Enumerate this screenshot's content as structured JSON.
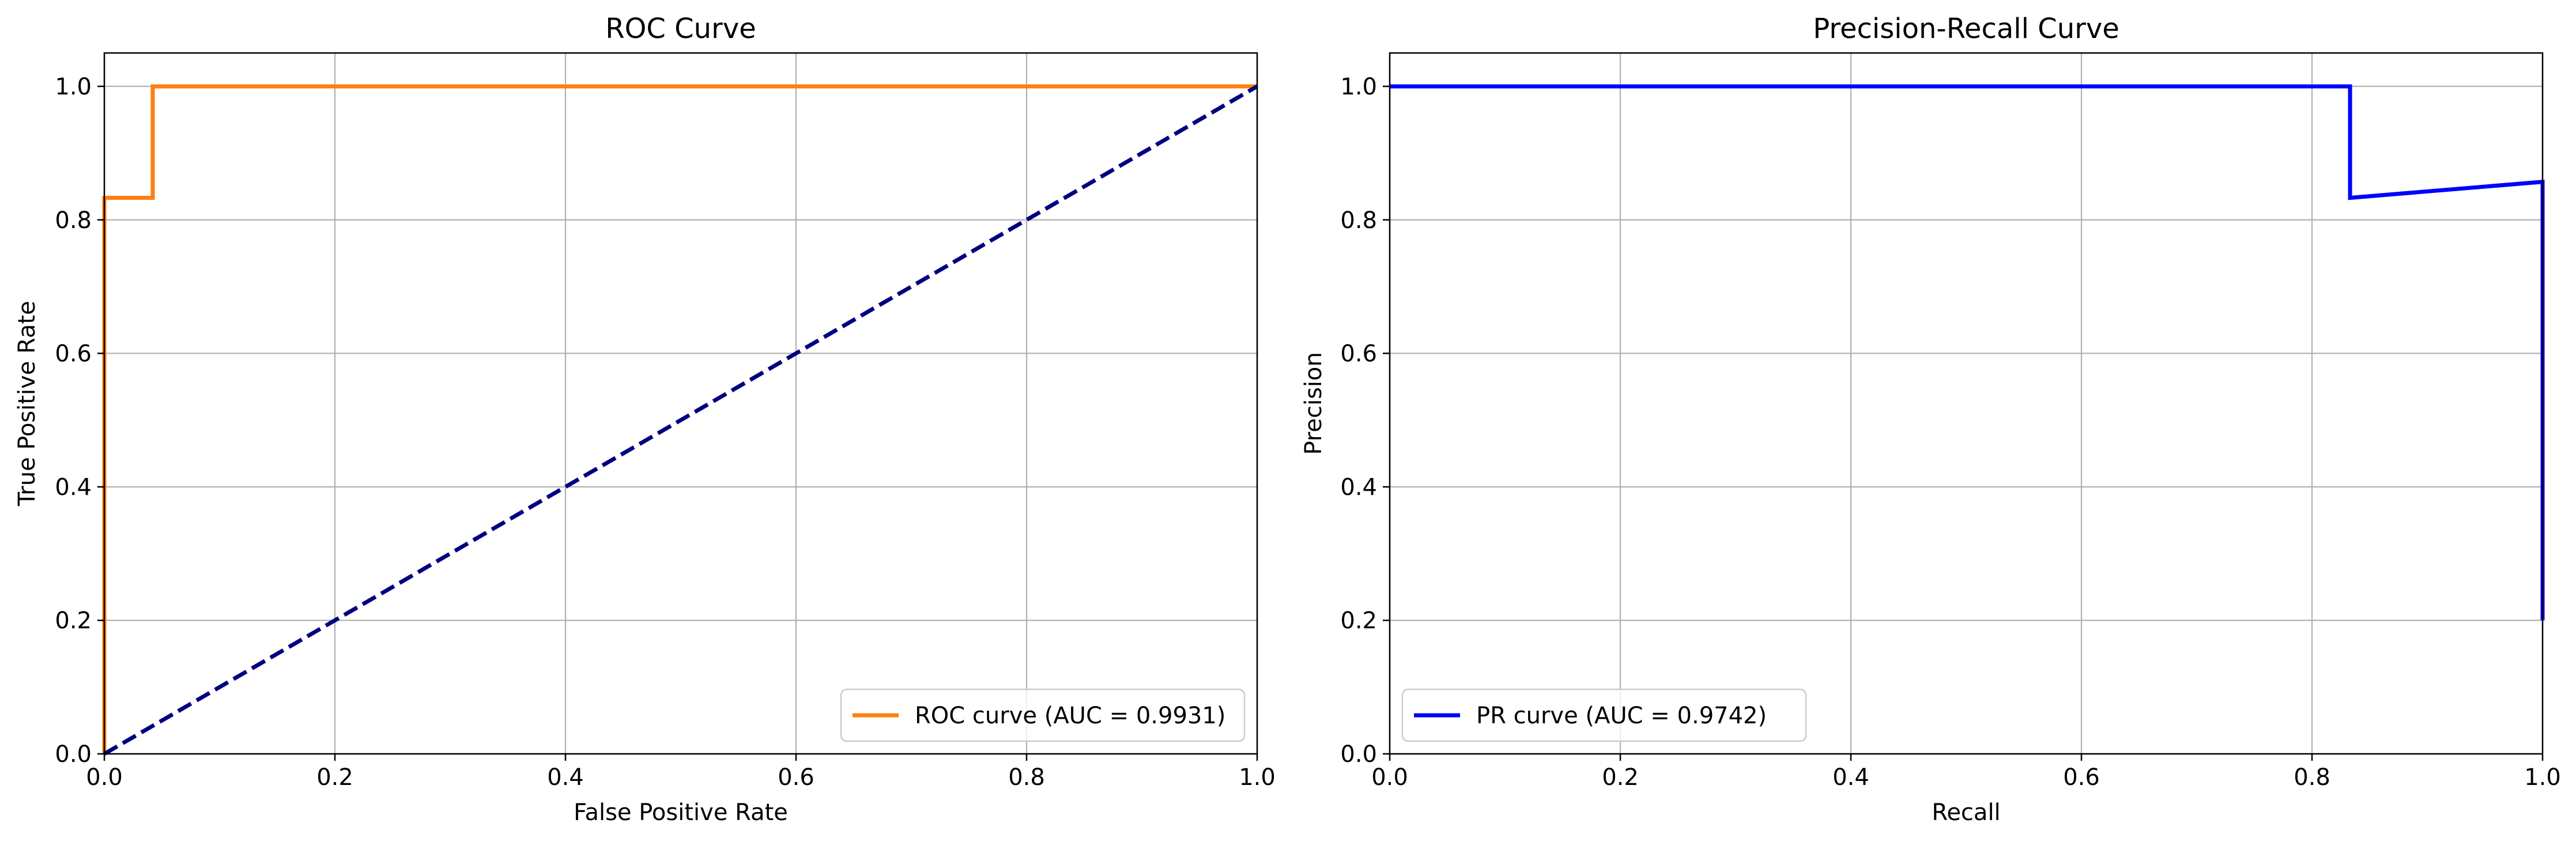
{
  "chart_data": [
    {
      "type": "line",
      "title": "ROC Curve",
      "xlabel": "False Positive Rate",
      "ylabel": "True Positive Rate",
      "xlim": [
        0,
        1
      ],
      "ylim": [
        0,
        1.05
      ],
      "xticks": [
        "0.0",
        "0.2",
        "0.4",
        "0.6",
        "0.8",
        "1.0"
      ],
      "yticks": [
        "0.0",
        "0.2",
        "0.4",
        "0.6",
        "0.8",
        "1.0"
      ],
      "grid": true,
      "legend_position": "lower right",
      "series": [
        {
          "name": "ROC curve (AUC = 0.9931)",
          "color": "#ff7f0e",
          "style": "solid",
          "x": [
            0.0,
            0.0,
            0.042,
            0.042,
            1.0
          ],
          "y": [
            0.0,
            0.833,
            0.833,
            1.0,
            1.0
          ]
        },
        {
          "color": "#000080",
          "style": "dashed",
          "x": [
            0.0,
            1.0
          ],
          "y": [
            0.0,
            1.0
          ]
        }
      ]
    },
    {
      "type": "line",
      "title": "Precision-Recall Curve",
      "xlabel": "Recall",
      "ylabel": "Precision",
      "xlim": [
        0,
        1
      ],
      "ylim": [
        0,
        1.05
      ],
      "xticks": [
        "0.0",
        "0.2",
        "0.4",
        "0.6",
        "0.8",
        "1.0"
      ],
      "yticks": [
        "0.0",
        "0.2",
        "0.4",
        "0.6",
        "0.8",
        "1.0"
      ],
      "grid": true,
      "legend_position": "lower left",
      "series": [
        {
          "name": "PR curve (AUC = 0.9742)",
          "color": "#0000ff",
          "style": "solid",
          "x": [
            0.0,
            0.833,
            0.833,
            1.0,
            1.0
          ],
          "y": [
            1.0,
            1.0,
            0.833,
            0.857,
            0.2
          ]
        }
      ]
    }
  ]
}
